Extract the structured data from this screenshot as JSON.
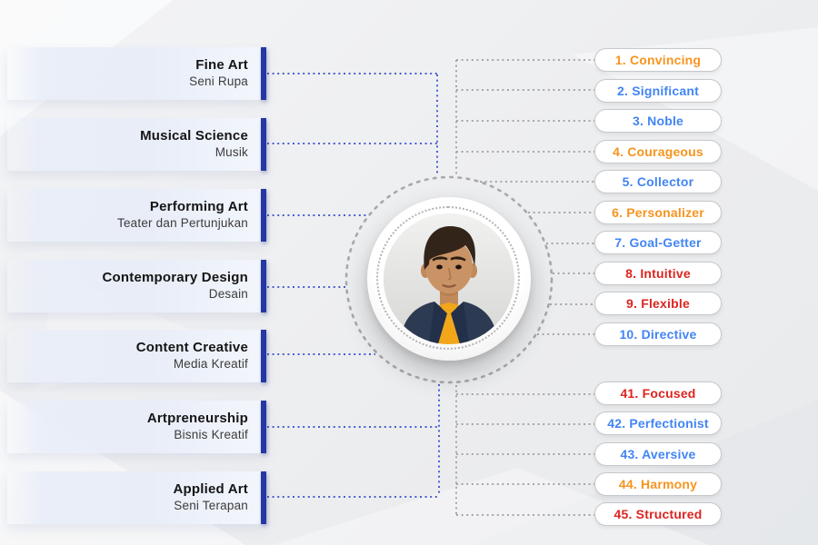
{
  "left_categories": [
    {
      "title": "Fine Art",
      "subtitle": "Seni Rupa"
    },
    {
      "title": "Musical Science",
      "subtitle": "Musik"
    },
    {
      "title": "Performing Art",
      "subtitle": "Teater dan Pertunjukan"
    },
    {
      "title": "Contemporary Design",
      "subtitle": "Desain"
    },
    {
      "title": "Content Creative",
      "subtitle": "Media Kreatif"
    },
    {
      "title": "Artpreneurship",
      "subtitle": "Bisnis Kreatif"
    },
    {
      "title": "Applied Art",
      "subtitle": "Seni Terapan"
    }
  ],
  "traits_top": [
    {
      "label": "1. Convincing",
      "color": "orange"
    },
    {
      "label": "2. Significant",
      "color": "blue"
    },
    {
      "label": "3. Noble",
      "color": "blue"
    },
    {
      "label": "4. Courageous",
      "color": "orange"
    },
    {
      "label": "5. Collector",
      "color": "blue"
    },
    {
      "label": "6. Personalizer",
      "color": "orange"
    },
    {
      "label": "7. Goal-Getter",
      "color": "blue"
    },
    {
      "label": "8. Intuitive",
      "color": "red"
    },
    {
      "label": "9. Flexible",
      "color": "red"
    },
    {
      "label": "10. Directive",
      "color": "blue"
    }
  ],
  "traits_bottom": [
    {
      "label": "41. Focused",
      "color": "red"
    },
    {
      "label": "42. Perfectionist",
      "color": "blue"
    },
    {
      "label": "43. Aversive",
      "color": "blue"
    },
    {
      "label": "44. Harmony",
      "color": "orange"
    },
    {
      "label": "45. Structured",
      "color": "red"
    }
  ],
  "colors": {
    "orange": "#F7941E",
    "blue": "#4285F4",
    "red": "#DD2420",
    "accent_bar": "#2437A4",
    "connector_blue": "#4A5FD0",
    "connector_gray": "#A6A6A6"
  },
  "center": {
    "portrait": "boy-portrait-photo"
  }
}
